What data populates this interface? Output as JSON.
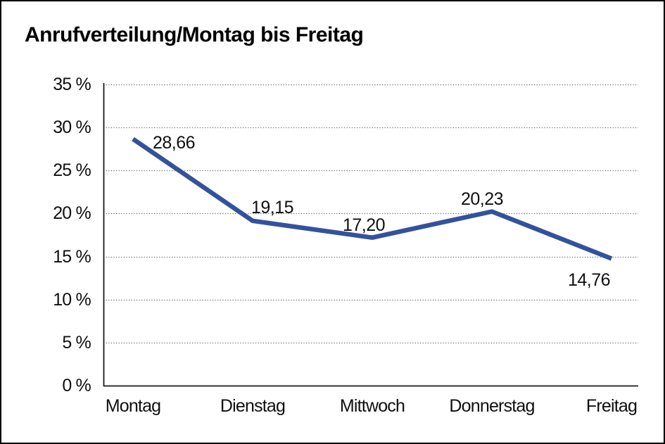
{
  "chart_data": {
    "type": "line",
    "title": "Anrufverteilung/Montag bis Freitag",
    "categories": [
      "Montag",
      "Dienstag",
      "Mittwoch",
      "Donnerstag",
      "Freitag"
    ],
    "values": [
      28.66,
      19.15,
      17.2,
      20.23,
      14.76
    ],
    "point_labels": [
      "28,66",
      "19,15",
      "17,20",
      "20,23",
      "14,76"
    ],
    "xlabel": "",
    "ylabel": "",
    "ylim": [
      0,
      35
    ],
    "ytick_interval": 5,
    "ytick_labels": [
      "0 %",
      "5 %",
      "10 %",
      "15 %",
      "20 %",
      "25 %",
      "30 %",
      "35 %"
    ],
    "grid": "horizontal-dotted",
    "legend": "none"
  },
  "colors": {
    "line": "#34529C",
    "grid": "#666666",
    "axis": "#1a1a1a",
    "border": "#000000",
    "background": "#ffffff",
    "text": "#000000"
  }
}
